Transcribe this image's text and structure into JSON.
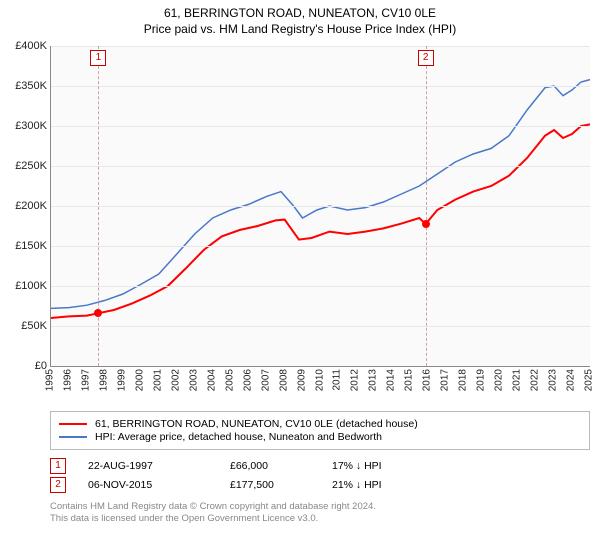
{
  "title": "61, BERRINGTON ROAD, NUNEATON, CV10 0LE",
  "subtitle": "Price paid vs. HM Land Registry's House Price Index (HPI)",
  "chart": {
    "type": "line",
    "background_color": "#fafafa",
    "grid_color": "#e8e8e8",
    "axis_color": "#888888",
    "x": {
      "min": 1995,
      "max": 2025,
      "ticks": [
        1995,
        1996,
        1997,
        1998,
        1999,
        2000,
        2001,
        2002,
        2003,
        2004,
        2005,
        2006,
        2007,
        2008,
        2009,
        2010,
        2011,
        2012,
        2013,
        2014,
        2015,
        2016,
        2017,
        2018,
        2019,
        2020,
        2021,
        2022,
        2023,
        2024,
        2025
      ]
    },
    "y": {
      "min": 0,
      "max": 400000,
      "tick_step": 50000,
      "tick_labels": [
        "£0",
        "£50K",
        "£100K",
        "£150K",
        "£200K",
        "£250K",
        "£300K",
        "£350K",
        "£400K"
      ]
    },
    "series": [
      {
        "key": "price_paid",
        "label": "61, BERRINGTON ROAD, NUNEATON, CV10 0LE (detached house)",
        "color": "#ff0000",
        "line_width": 2,
        "points": [
          [
            1995.0,
            60000
          ],
          [
            1996.0,
            62000
          ],
          [
            1997.0,
            63000
          ],
          [
            1997.64,
            66000
          ],
          [
            1998.5,
            70000
          ],
          [
            1999.5,
            78000
          ],
          [
            2000.5,
            88000
          ],
          [
            2001.5,
            100000
          ],
          [
            2002.5,
            122000
          ],
          [
            2003.5,
            145000
          ],
          [
            2004.5,
            162000
          ],
          [
            2005.5,
            170000
          ],
          [
            2006.5,
            175000
          ],
          [
            2007.5,
            182000
          ],
          [
            2008.0,
            183000
          ],
          [
            2008.8,
            158000
          ],
          [
            2009.5,
            160000
          ],
          [
            2010.5,
            168000
          ],
          [
            2011.5,
            165000
          ],
          [
            2012.5,
            168000
          ],
          [
            2013.5,
            172000
          ],
          [
            2014.5,
            178000
          ],
          [
            2015.5,
            185000
          ],
          [
            2015.85,
            177500
          ],
          [
            2016.5,
            195000
          ],
          [
            2017.5,
            208000
          ],
          [
            2018.5,
            218000
          ],
          [
            2019.5,
            225000
          ],
          [
            2020.5,
            238000
          ],
          [
            2021.5,
            260000
          ],
          [
            2022.5,
            288000
          ],
          [
            2023.0,
            295000
          ],
          [
            2023.5,
            285000
          ],
          [
            2024.0,
            290000
          ],
          [
            2024.5,
            300000
          ],
          [
            2025.0,
            302000
          ]
        ]
      },
      {
        "key": "hpi",
        "label": "HPI: Average price, detached house, Nuneaton and Bedworth",
        "color": "#4a78c8",
        "line_width": 1.5,
        "points": [
          [
            1995.0,
            72000
          ],
          [
            1996.0,
            73000
          ],
          [
            1997.0,
            76000
          ],
          [
            1998.0,
            82000
          ],
          [
            1999.0,
            90000
          ],
          [
            2000.0,
            102000
          ],
          [
            2001.0,
            115000
          ],
          [
            2002.0,
            140000
          ],
          [
            2003.0,
            165000
          ],
          [
            2004.0,
            185000
          ],
          [
            2005.0,
            195000
          ],
          [
            2006.0,
            202000
          ],
          [
            2007.0,
            212000
          ],
          [
            2007.8,
            218000
          ],
          [
            2008.5,
            200000
          ],
          [
            2009.0,
            185000
          ],
          [
            2009.8,
            195000
          ],
          [
            2010.5,
            200000
          ],
          [
            2011.5,
            195000
          ],
          [
            2012.5,
            198000
          ],
          [
            2013.5,
            205000
          ],
          [
            2014.5,
            215000
          ],
          [
            2015.5,
            225000
          ],
          [
            2016.5,
            240000
          ],
          [
            2017.5,
            255000
          ],
          [
            2018.5,
            265000
          ],
          [
            2019.5,
            272000
          ],
          [
            2020.5,
            288000
          ],
          [
            2021.5,
            320000
          ],
          [
            2022.5,
            348000
          ],
          [
            2023.0,
            350000
          ],
          [
            2023.5,
            338000
          ],
          [
            2024.0,
            345000
          ],
          [
            2024.5,
            355000
          ],
          [
            2025.0,
            358000
          ]
        ]
      }
    ],
    "sale_markers": [
      {
        "n": "1",
        "x": 1997.64,
        "y": 66000
      },
      {
        "n": "2",
        "x": 2015.85,
        "y": 177500
      }
    ],
    "sale_vline_color": "#d0a0a0",
    "sale_box_color": "#cc0000",
    "marker_fill": "#ff0000"
  },
  "legend": [
    {
      "color": "#ff0000",
      "label": "61, BERRINGTON ROAD, NUNEATON, CV10 0LE (detached house)"
    },
    {
      "color": "#4a78c8",
      "label": "HPI: Average price, detached house, Nuneaton and Bedworth"
    }
  ],
  "sales": [
    {
      "n": "1",
      "date": "22-AUG-1997",
      "price": "£66,000",
      "diff": "17% ↓ HPI"
    },
    {
      "n": "2",
      "date": "06-NOV-2015",
      "price": "£177,500",
      "diff": "21% ↓ HPI"
    }
  ],
  "footer": {
    "line1": "Contains HM Land Registry data © Crown copyright and database right 2024.",
    "line2": "This data is licensed under the Open Government Licence v3.0."
  }
}
